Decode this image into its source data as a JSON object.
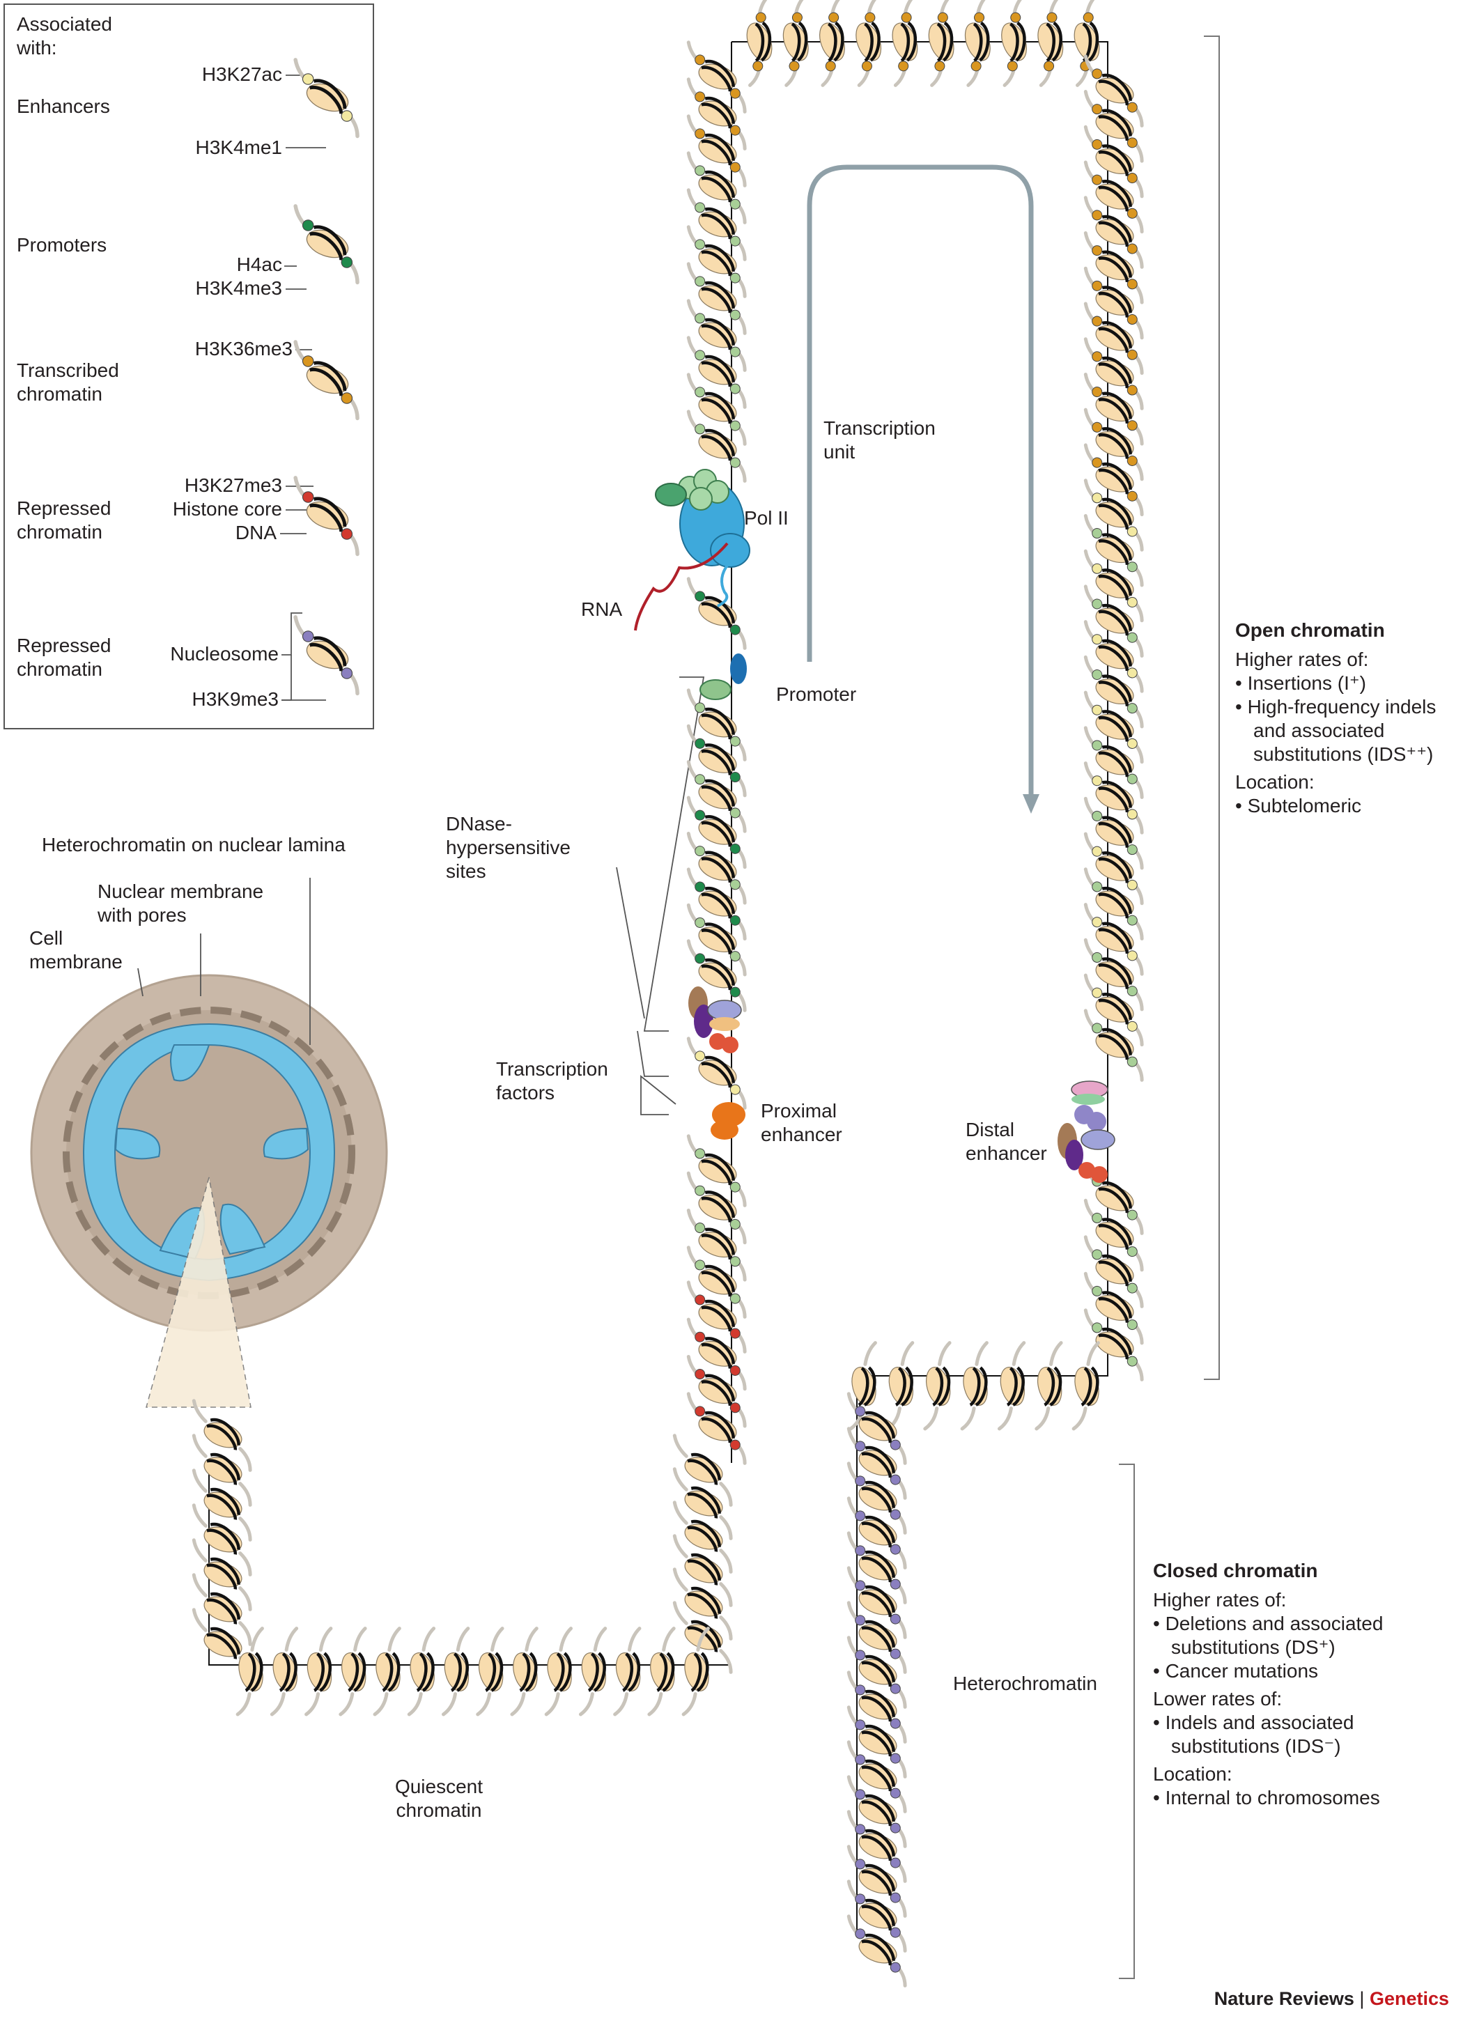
{
  "legend": {
    "heading": "Associated\nwith:",
    "rows": [
      {
        "category": "Enhancers",
        "marks": [
          "H3K27ac",
          "H3K4me1"
        ]
      },
      {
        "category": "Promoters",
        "marks": [
          "H4ac",
          "H3K4me3"
        ]
      },
      {
        "category": "Transcribed\nchromatin",
        "marks": [
          "H3K36me3"
        ]
      },
      {
        "category": "Repressed\nchromatin",
        "marks": [
          "H3K27me3",
          "Histone core",
          "DNA"
        ]
      },
      {
        "category": "Repressed\nchromatin",
        "marks": [
          "Nucleosome",
          "H3K9me3"
        ]
      }
    ]
  },
  "cell": {
    "heterochromatin_label": "Heterochromatin on nuclear lamina",
    "nuclear_membrane_label": "Nuclear membrane\nwith pores",
    "cell_membrane_label": "Cell\nmembrane"
  },
  "labels": {
    "transcription_unit": "Transcription\nunit",
    "pol2": "Pol II",
    "rna": "RNA",
    "promoter": "Promoter",
    "dnase": "DNase-\nhypersensitive\nsites",
    "tf": "Transcription\nfactors",
    "proximal": "Proximal\nenhancer",
    "distal": "Distal\nenhancer",
    "heterochromatin": "Heterochromatin",
    "quiescent": "Quiescent\nchromatin"
  },
  "open_panel": {
    "title": "Open chromatin",
    "lines": [
      {
        "text": "Higher rates of:",
        "bullet": false
      },
      {
        "text": "• Insertions (I⁺)",
        "bullet": true
      },
      {
        "text": "• High-frequency indels and associated substitutions (IDS⁺⁺)",
        "bullet": true
      },
      {
        "text": "Location:",
        "bullet": false
      },
      {
        "text": "• Subtelomeric",
        "bullet": true
      }
    ]
  },
  "closed_panel": {
    "title": "Closed chromatin",
    "lines": [
      {
        "text": "Higher rates of:",
        "bullet": false
      },
      {
        "text": "• Deletions and associated substitutions (DS⁺)",
        "bullet": true
      },
      {
        "text": "• Cancer mutations",
        "bullet": true
      },
      {
        "text": "Lower rates of:",
        "bullet": false
      },
      {
        "text": "• Indels and associated substitutions (IDS⁻)",
        "bullet": true
      },
      {
        "text": "Location:",
        "bullet": false
      },
      {
        "text": "• Internal to chromosomes",
        "bullet": true
      }
    ]
  },
  "credit": {
    "brand": "Nature Reviews",
    "separator": "|",
    "field": "Genetics"
  },
  "colors": {
    "core": "#f8dcae",
    "dna": "#111111",
    "tail": "#c9c4bb",
    "acetyl": "#f3e9a2",
    "me1": "#a8cf97",
    "me3_green": "#1f8a4c",
    "k36": "#d99620",
    "k27me3": "#d23a2f",
    "k9me3": "#8a7fbf",
    "arrow": "#8fa0a8",
    "cell_fill": "#c9b8a8",
    "nucleus_fill": "#6fc3e6",
    "rna": "#b0202a",
    "pol2": "#3ea9db"
  }
}
